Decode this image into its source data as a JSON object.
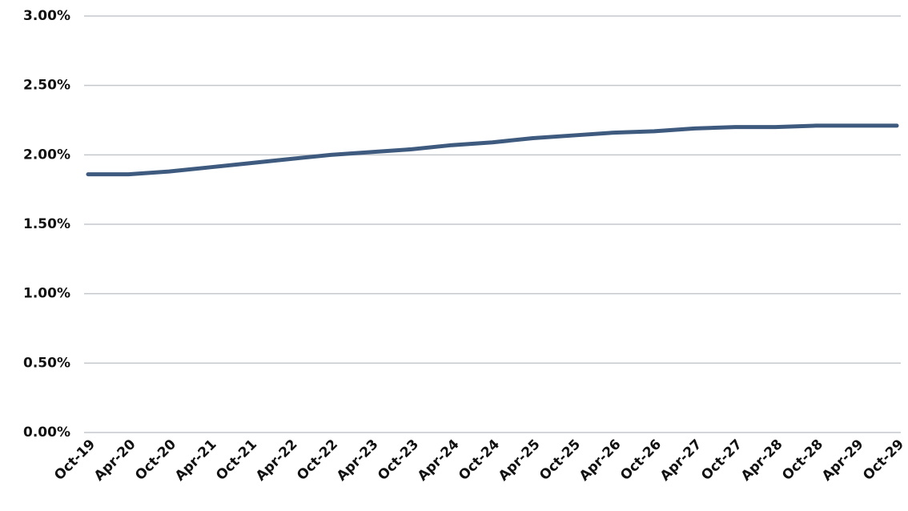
{
  "chart_data": {
    "type": "line",
    "categories": [
      "Oct-19",
      "Apr-20",
      "Oct-20",
      "Apr-21",
      "Oct-21",
      "Apr-22",
      "Oct-22",
      "Apr-23",
      "Oct-23",
      "Apr-24",
      "Oct-24",
      "Apr-25",
      "Oct-25",
      "Apr-26",
      "Oct-26",
      "Apr-27",
      "Oct-27",
      "Apr-28",
      "Oct-28",
      "Apr-29",
      "Oct-29"
    ],
    "values": [
      1.86,
      1.86,
      1.88,
      1.91,
      1.94,
      1.97,
      2.0,
      2.02,
      2.04,
      2.07,
      2.09,
      2.12,
      2.14,
      2.16,
      2.17,
      2.19,
      2.2,
      2.2,
      2.21,
      2.21,
      2.21
    ],
    "color": "#3e5a7e",
    "ylim": [
      0,
      3
    ],
    "yticks": [
      {
        "value": 0,
        "label": "0.00%"
      },
      {
        "value": 0.5,
        "label": "0.50%"
      },
      {
        "value": 1,
        "label": "1.00%"
      },
      {
        "value": 1.5,
        "label": "1.50%"
      },
      {
        "value": 2,
        "label": "2.00%"
      },
      {
        "value": 2.5,
        "label": "2.50%"
      },
      {
        "value": 3,
        "label": "3.00%"
      }
    ],
    "grid": true
  }
}
